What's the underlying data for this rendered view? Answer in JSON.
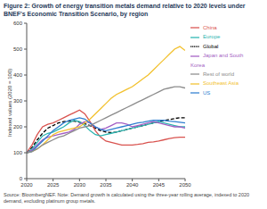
{
  "chart_data": {
    "type": "line",
    "title": "Figure 2: Growth of energy transition metals demand relative to 2020 levels under BNEF's Economic Transition Scenario, by region",
    "y_label": "Indexed values (2020 = 100)",
    "source": "Source: BloombergNEF. Note: Demand growth is calculated using the three-year rolling average, indexed to 2020 demand, excluding platinum group metals.",
    "x": [
      2020,
      2021,
      2022,
      2023,
      2024,
      2025,
      2026,
      2027,
      2028,
      2029,
      2030,
      2031,
      2032,
      2033,
      2034,
      2035,
      2036,
      2037,
      2038,
      2039,
      2040,
      2041,
      2042,
      2043,
      2044,
      2045,
      2046,
      2047,
      2048,
      2049,
      2050
    ],
    "xlim": [
      2020,
      2050
    ],
    "xticks": [
      2020,
      2025,
      2030,
      2035,
      2040,
      2045,
      2050
    ],
    "ylim": [
      0,
      600
    ],
    "yticks": [
      0,
      100,
      200,
      300,
      400,
      500,
      600
    ],
    "grid": false,
    "legend": "right",
    "series": [
      {
        "name": "Global",
        "color": "#000000",
        "line_style": "dashed",
        "values": [
          100,
          120,
          150,
          175,
          195,
          205,
          215,
          220,
          222,
          222,
          218,
          212,
          205,
          195,
          185,
          180,
          178,
          180,
          185,
          190,
          195,
          200,
          205,
          210,
          215,
          220,
          225,
          228,
          232,
          235,
          235
        ]
      },
      {
        "name": "China",
        "color": "#d9534f",
        "line_style": "solid",
        "values": [
          100,
          130,
          170,
          200,
          210,
          215,
          225,
          235,
          245,
          255,
          265,
          250,
          220,
          185,
          160,
          145,
          140,
          135,
          130,
          130,
          130,
          132,
          135,
          140,
          142,
          145,
          150,
          155,
          158,
          160,
          160
        ]
      },
      {
        "name": "Europe",
        "color": "#2bb5b0",
        "line_style": "solid",
        "values": [
          100,
          115,
          140,
          165,
          175,
          180,
          190,
          200,
          215,
          225,
          220,
          205,
          185,
          170,
          165,
          170,
          175,
          180,
          185,
          190,
          195,
          200,
          205,
          210,
          215,
          220,
          215,
          210,
          205,
          200,
          200
        ]
      },
      {
        "name": "Japan and South Korea",
        "color": "#a45fc4",
        "line_style": "solid",
        "values": [
          100,
          110,
          130,
          150,
          160,
          165,
          170,
          175,
          180,
          190,
          210,
          220,
          215,
          200,
          190,
          195,
          205,
          215,
          215,
          210,
          200,
          205,
          210,
          215,
          220,
          215,
          210,
          205,
          200,
          200,
          195
        ]
      },
      {
        "name": "Southeast Asia",
        "color": "#f2c12e",
        "line_style": "solid",
        "values": [
          100,
          105,
          115,
          130,
          150,
          170,
          180,
          185,
          190,
          195,
          200,
          215,
          230,
          250,
          270,
          290,
          310,
          325,
          335,
          345,
          355,
          370,
          385,
          400,
          420,
          440,
          460,
          480,
          500,
          510,
          495
        ]
      },
      {
        "name": "US",
        "color": "#2f7fd0",
        "line_style": "solid",
        "values": [
          100,
          105,
          125,
          145,
          165,
          185,
          200,
          215,
          225,
          230,
          235,
          230,
          215,
          200,
          190,
          185,
          190,
          195,
          200,
          205,
          210,
          215,
          218,
          222,
          225,
          225,
          225,
          222,
          220,
          218,
          215
        ]
      },
      {
        "name": "Rest of world",
        "color": "#8c8c8c",
        "line_style": "solid",
        "values": [
          100,
          105,
          115,
          130,
          140,
          150,
          160,
          165,
          175,
          185,
          195,
          200,
          205,
          215,
          225,
          235,
          245,
          255,
          265,
          275,
          285,
          295,
          305,
          315,
          325,
          335,
          345,
          350,
          355,
          355,
          350
        ]
      }
    ]
  }
}
